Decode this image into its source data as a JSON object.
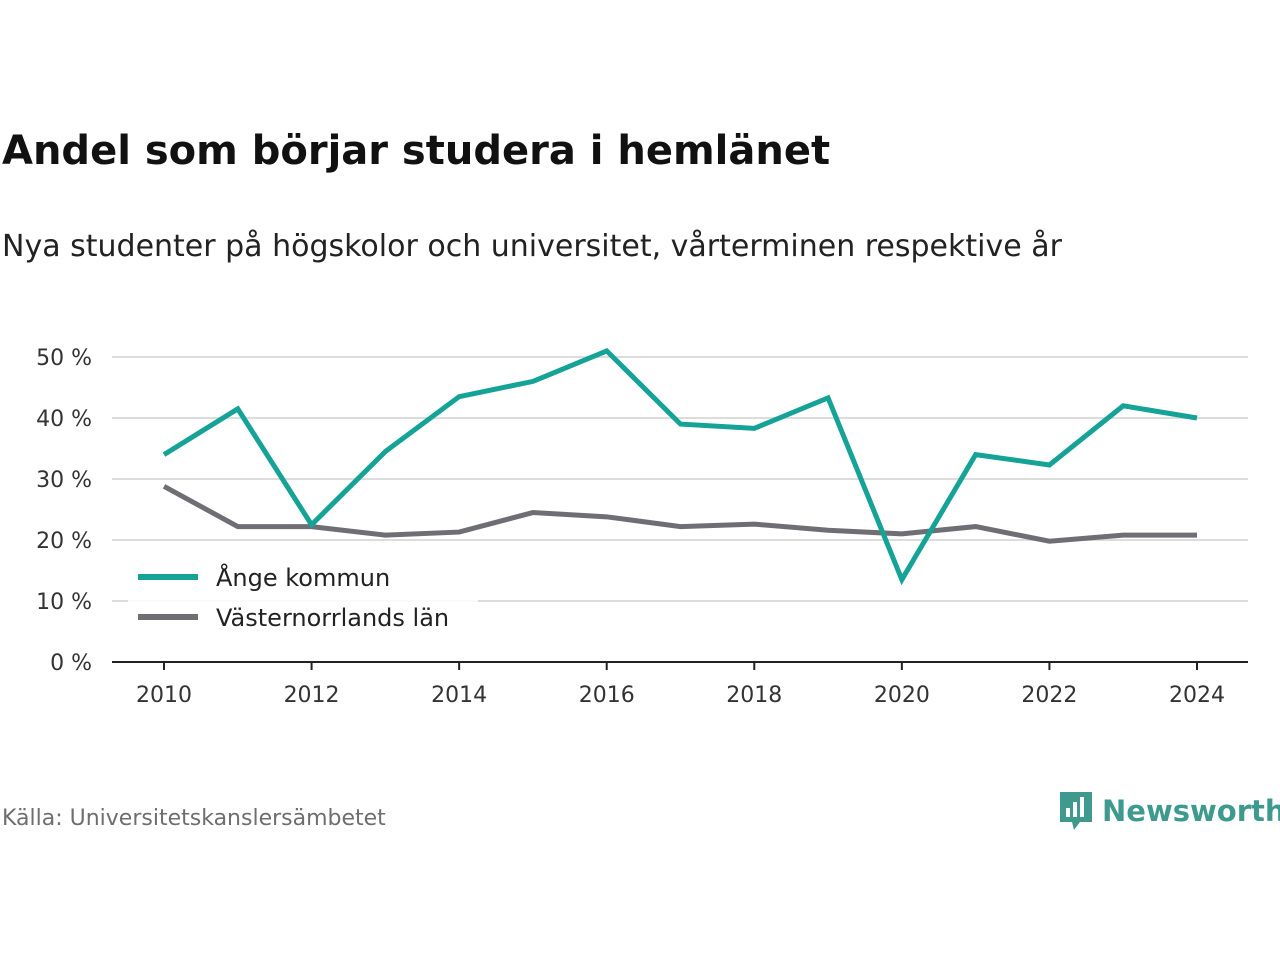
{
  "header": {
    "title": "Andel som börjar studera i hemlänet",
    "subtitle": "Nya studenter på högskolor och universitet, vårterminen respektive år"
  },
  "footer": {
    "source": "Källa: Universitetskanslersämbetet",
    "brand": "Newsworthy",
    "brand_color": "#3e9a8f"
  },
  "chart_data": {
    "type": "line",
    "title": "Andel som börjar studera i hemlänet",
    "subtitle": "Nya studenter på högskolor och universitet, vårterminen respektive år",
    "xlabel": "",
    "ylabel": "",
    "x": [
      2010,
      2011,
      2012,
      2013,
      2014,
      2015,
      2016,
      2017,
      2018,
      2019,
      2020,
      2021,
      2022,
      2023,
      2024
    ],
    "x_ticks": [
      "2010",
      "2012",
      "2014",
      "2016",
      "2018",
      "2020",
      "2022",
      "2024"
    ],
    "y_ticks": [
      "0 %",
      "10 %",
      "20 %",
      "30 %",
      "40 %",
      "50 %"
    ],
    "ylim": [
      0,
      50
    ],
    "grid": true,
    "legend_position": "bottom-left",
    "series": [
      {
        "name": "Ånge kommun",
        "color": "#14a396",
        "values": [
          34,
          41.5,
          22.5,
          34.5,
          43.5,
          46,
          51,
          39,
          38.3,
          43.3,
          13.5,
          34,
          32.3,
          42,
          40
        ]
      },
      {
        "name": "Västernorrlands län",
        "color": "#6f6e75",
        "values": [
          28.8,
          22.2,
          22.2,
          20.8,
          21.3,
          24.5,
          23.8,
          22.2,
          22.6,
          21.6,
          21,
          22.2,
          19.8,
          20.8,
          20.8
        ]
      }
    ]
  }
}
